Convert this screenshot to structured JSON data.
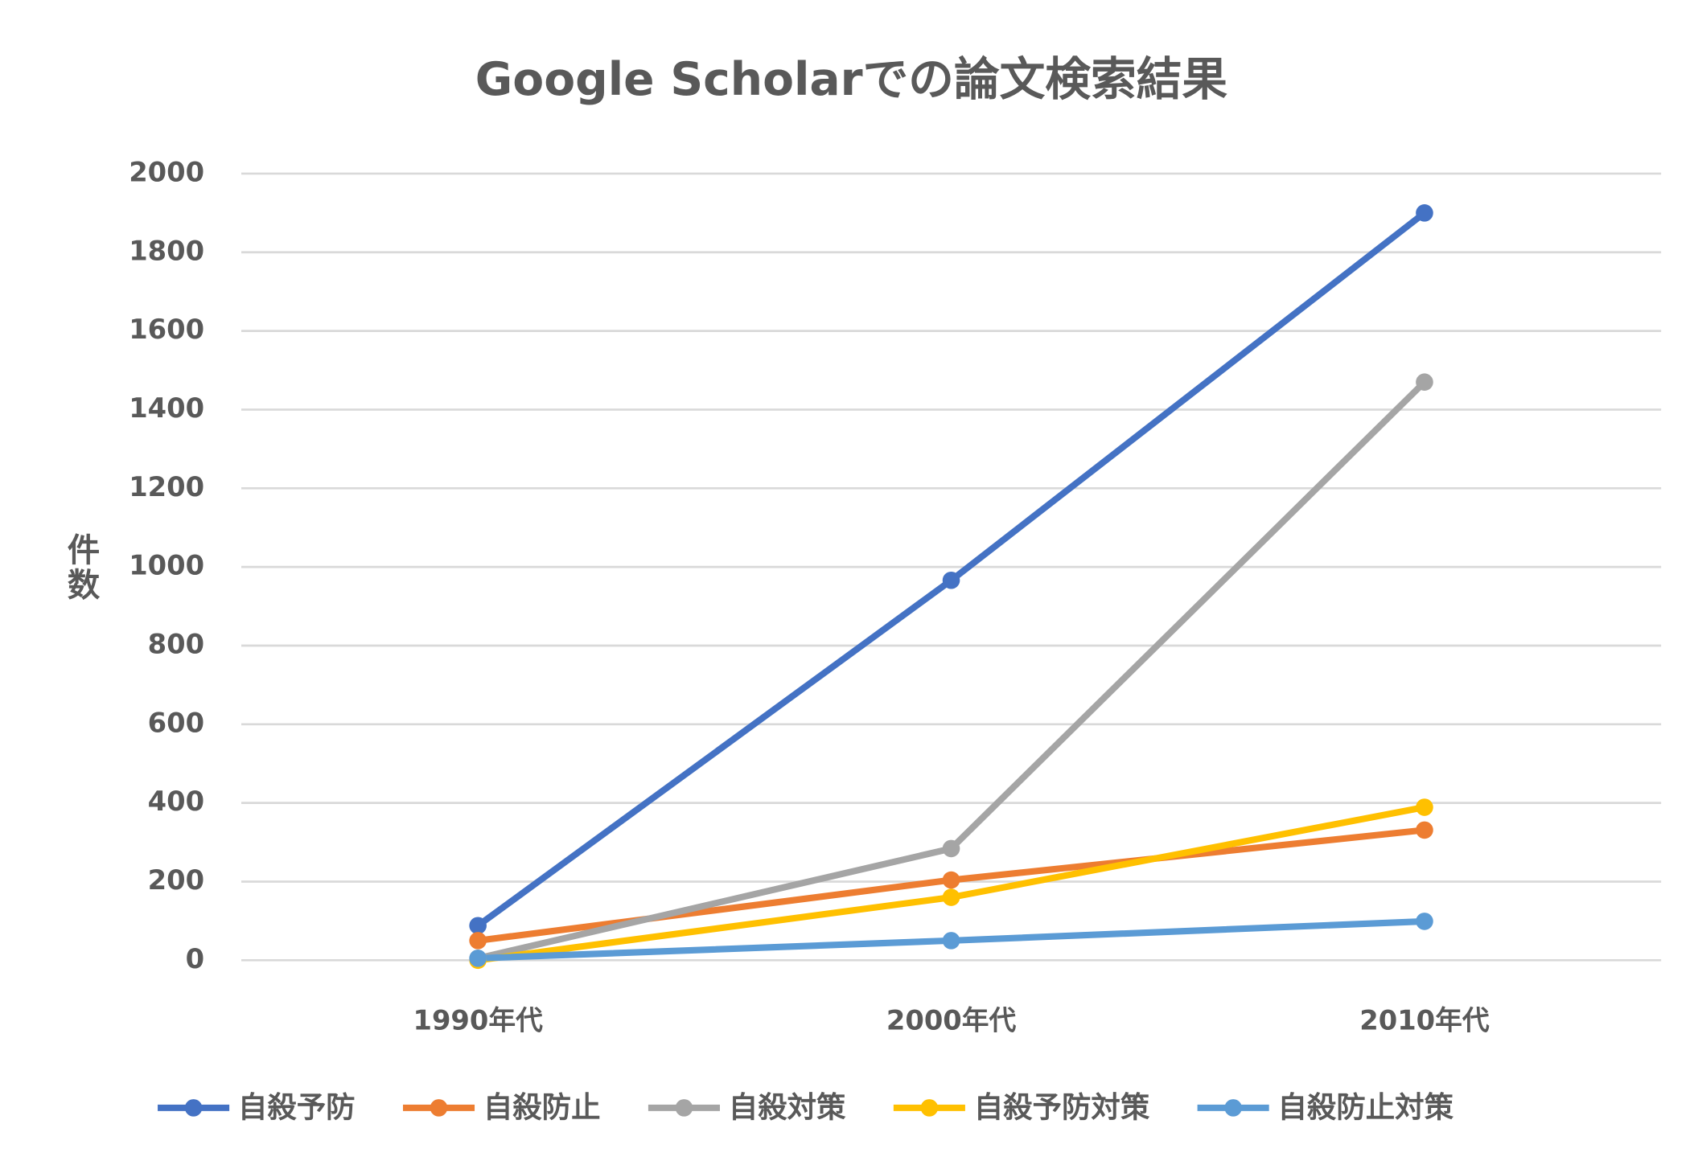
{
  "chart_data": {
    "type": "line",
    "title": "Google Scholarでの論文検索結果",
    "y_label": "件数",
    "categories": [
      "1990年代",
      "2000年代",
      "2010年代"
    ],
    "series": [
      {
        "name": "自殺予防",
        "color": "#4472c4",
        "values": [
          88,
          966,
          1900
        ]
      },
      {
        "name": "自殺防止",
        "color": "#ed7d31",
        "values": [
          50,
          204,
          331
        ]
      },
      {
        "name": "自殺対策",
        "color": "#a5a5a5",
        "values": [
          5,
          284,
          1470
        ]
      },
      {
        "name": "自殺予防対策",
        "color": "#ffc000",
        "values": [
          0,
          160,
          389
        ]
      },
      {
        "name": "自殺防止対策",
        "color": "#5b9bd5",
        "values": [
          5,
          50,
          99
        ]
      }
    ],
    "ylim": [
      0,
      2000
    ],
    "yticks": [
      0,
      200,
      400,
      600,
      800,
      1000,
      1200,
      1400,
      1600,
      1800,
      2000
    ],
    "grid": true,
    "legend": "bottom"
  }
}
